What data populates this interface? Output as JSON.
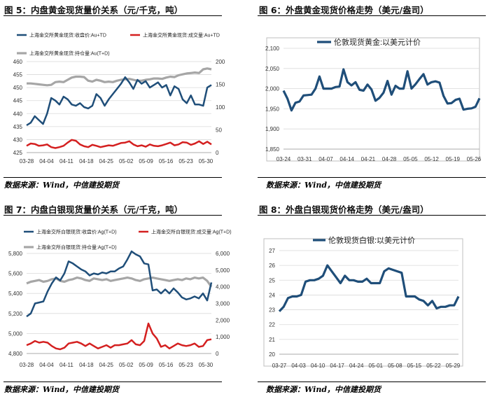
{
  "panels": [
    {
      "id": "p5",
      "title": "图 5：内盘黄金现货量价关系（元/千克，吨）",
      "source": "数据来源：Wind，中信建投期货",
      "chart_data": {
        "type": "line",
        "xlabels": [
          "03-28",
          "04-04",
          "04-11",
          "04-18",
          "04-25",
          "05-02",
          "05-09",
          "05-16",
          "05-23",
          "05-30"
        ],
        "y_left": {
          "range": [
            425,
            460
          ],
          "ticks": [
            425,
            430,
            435,
            440,
            445,
            450,
            455,
            460
          ]
        },
        "y_right": {
          "range": [
            0,
            200
          ],
          "ticks": [
            0,
            50,
            100,
            150,
            200
          ]
        },
        "legend": [
          {
            "text": "上海金交所黄金现货:收盘价:Au+TD",
            "color": "#1f4e79"
          },
          {
            "text": "上海金交所黄金现货:成交量:Au+TD",
            "color": "#d42020"
          },
          {
            "text": "上海金交所黄金现货:持仓量:Au(T+D)",
            "color": "#a6a6a6"
          }
        ],
        "series": [
          {
            "name": "上海金交所黄金现货:收盘价:Au+TD",
            "axis": "left",
            "color": "#1f4e79",
            "values": [
              435.5,
              436.5,
              439,
              437.5,
              436,
              440,
              446,
              445,
              443.5,
              446.5,
              445.5,
              443.5,
              443,
              444,
              442.5,
              442,
              443,
              447.5,
              446,
              443,
              445.5,
              447.5,
              449.5,
              451.5,
              454,
              452,
              449.5,
              453,
              451.5,
              452.5,
              450,
              451,
              452,
              450,
              451,
              447,
              450.5,
              449.5,
              445.5,
              444,
              447,
              443.5,
              443.5,
              443,
              450,
              451
            ]
          },
          {
            "name": "上海金交所黄金现货:成交量:Au+TD",
            "axis": "right",
            "color": "#d42020",
            "values": [
              15,
              20,
              19,
              15,
              16,
              18,
              12,
              10,
              12,
              15,
              22,
              28,
              26,
              18,
              14,
              12,
              17,
              15,
              12,
              14,
              16,
              15,
              18,
              21,
              22,
              25,
              18,
              14,
              16,
              13,
              18,
              15,
              14,
              16,
              19,
              22,
              16,
              18,
              23,
              22,
              17,
              20,
              25,
              19,
              24,
              18
            ]
          },
          {
            "name": "上海金交所黄金现货:持仓量:Au(T+D)",
            "axis": "right",
            "color": "#a6a6a6",
            "values": [
              152,
              152,
              151,
              150,
              149,
              148,
              149,
              155,
              156,
              155,
              160,
              165,
              167,
              167,
              166,
              158,
              156,
              160,
              158,
              155,
              156,
              155,
              158,
              160,
              161,
              162,
              160,
              158,
              158,
              160,
              161,
              163,
              163,
              162,
              165,
              167,
              166,
              170,
              172,
              174,
              175,
              176,
              175,
              183,
              185,
              183
            ]
          }
        ]
      }
    },
    {
      "id": "p6",
      "title": "图 6：外盘黄金现货价格走势（美元/盎司）",
      "source": "数据来源：Wind，中信建投期货",
      "chart_data": {
        "type": "line",
        "xlabels": [
          "03-24",
          "03-31",
          "04-07",
          "04-14",
          "04-21",
          "04-28",
          "05-05",
          "05-12",
          "05-19",
          "05-26"
        ],
        "y_left": {
          "range": [
            1850,
            2100
          ],
          "ticks": [
            1850,
            1900,
            1950,
            2000,
            2050,
            2100
          ]
        },
        "legend": [
          {
            "text": "伦敦现货黄金:以美元计价",
            "color": "#1f4e79"
          }
        ],
        "series": [
          {
            "name": "伦敦现货黄金:以美元计价",
            "axis": "left",
            "color": "#1f4e79",
            "values": [
              1995,
              1975,
              1946,
              1965,
              1968,
              1983,
              1984,
              1985,
              2000,
              2030,
              2000,
              2000,
              2000,
              2004,
              2005,
              2048,
              2016,
              2008,
              2016,
              1997,
              1995,
              2010,
              1998,
              1970,
              1977,
              1990,
              2019,
              1985,
              2007,
              2000,
              2000,
              2043,
              2000,
              2011,
              2024,
              2036,
              2010,
              2016,
              2018,
              2015,
              1982,
              1963,
              1964,
              1972,
              1975,
              1948,
              1950,
              1951,
              1955,
              1976
            ]
          }
        ]
      }
    },
    {
      "id": "p7",
      "title": "图 7：内盘白银现货量价关系（元/千克，吨）",
      "source": "数据来源：Wind，中信建投期货",
      "chart_data": {
        "type": "line",
        "xlabels": [
          "03-28",
          "04-04",
          "04-11",
          "04-18",
          "04-25",
          "05-02",
          "05-09",
          "05-16",
          "05-23",
          "05-30"
        ],
        "y_left": {
          "range": [
            4800,
            5800
          ],
          "ticks": [
            4800,
            5000,
            5200,
            5400,
            5600,
            5800
          ],
          "tick_labels": [
            "4,800",
            "5,000",
            "5,200",
            "5,400",
            "5,600",
            "5,800"
          ]
        },
        "y_right": {
          "range": [
            0,
            6000
          ],
          "ticks": [
            0,
            1000,
            2000,
            3000,
            4000,
            5000,
            6000
          ],
          "tick_labels": [
            "0",
            "1,000",
            "2,000",
            "3,000",
            "4,000",
            "5,000",
            "6,000"
          ]
        },
        "legend": [
          {
            "text": "上海金交所白银现货:收盘价:Ag(T+D)",
            "color": "#1f4e79"
          },
          {
            "text": "上海金交所白银现货:成交量:Ag(T+D)",
            "color": "#d42020"
          },
          {
            "text": "上海金交所白银现货:持仓量:Ag(T+D)",
            "color": "#a6a6a6"
          }
        ],
        "series": [
          {
            "name": "上海金交所白银现货:收盘价:Ag(T+D)",
            "axis": "left",
            "color": "#1f4e79",
            "values": [
              5170,
              5200,
              5300,
              5310,
              5320,
              5420,
              5500,
              5560,
              5530,
              5600,
              5720,
              5700,
              5670,
              5640,
              5620,
              5580,
              5600,
              5590,
              5610,
              5600,
              5620,
              5620,
              5650,
              5670,
              5740,
              5820,
              5790,
              5770,
              5700,
              5690,
              5430,
              5440,
              5400,
              5440,
              5400,
              5450,
              5410,
              5360,
              5340,
              5350,
              5370,
              5350,
              5400,
              5330,
              5510
            ]
          },
          {
            "name": "上海金交所白银现货:成交量:Ag(T+D)",
            "axis": "right",
            "color": "#d42020",
            "values": [
              500,
              600,
              750,
              650,
              700,
              650,
              450,
              300,
              250,
              350,
              600,
              650,
              700,
              600,
              450,
              600,
              450,
              300,
              400,
              500,
              350,
              500,
              500,
              550,
              600,
              800,
              550,
              500,
              750,
              1800,
              1200,
              900,
              400,
              500,
              300,
              450,
              600,
              500,
              450,
              500,
              600,
              400,
              450,
              800,
              850
            ]
          },
          {
            "name": "上海金交所白银现货:持仓量:Ag(T+D)",
            "axis": "right",
            "color": "#a6a6a6",
            "values": [
              4200,
              4300,
              4350,
              4400,
              4300,
              4350,
              4450,
              4500,
              4350,
              4300,
              4400,
              4450,
              4550,
              4500,
              4400,
              4350,
              4500,
              4450,
              4400,
              4450,
              4350,
              4400,
              4450,
              4500,
              4550,
              4500,
              4400,
              4350,
              4450,
              4500,
              4550,
              4500,
              4450,
              4400,
              4350,
              4400,
              4450,
              4400,
              4500,
              4450,
              4550,
              4500,
              4550,
              4350,
              4000
            ]
          }
        ]
      }
    },
    {
      "id": "p8",
      "title": "图 8：外盘白银现货价格走势（美元/盎司）",
      "source": "数据来源：Wind，中信建投期货",
      "chart_data": {
        "type": "line",
        "xlabels": [
          "03-27",
          "04-03",
          "04-10",
          "04-17",
          "04-24",
          "05-01",
          "05-08",
          "05-15",
          "05-22",
          "05-29"
        ],
        "y_left": {
          "range": [
            20,
            27
          ],
          "ticks": [
            20,
            21,
            22,
            23,
            24,
            25,
            26,
            27
          ]
        },
        "legend": [
          {
            "text": "伦敦现货白银:以美元计价",
            "color": "#1f4e79"
          }
        ],
        "series": [
          {
            "name": "伦敦现货白银:以美元计价",
            "axis": "left",
            "color": "#1f4e79",
            "values": [
              22.9,
              23.2,
              23.8,
              23.9,
              23.9,
              24.0,
              24.9,
              25.0,
              25.0,
              25.1,
              25.3,
              26.0,
              25.6,
              25.2,
              24.8,
              25.3,
              25.0,
              25.0,
              24.9,
              24.9,
              25.1,
              24.8,
              24.8,
              24.8,
              25.6,
              25.8,
              25.7,
              25.6,
              25.5,
              23.9,
              23.9,
              23.9,
              23.7,
              23.6,
              23.3,
              23.6,
              23.1,
              23.2,
              23.2,
              23.3,
              23.3,
              23.9
            ]
          }
        ]
      }
    }
  ]
}
